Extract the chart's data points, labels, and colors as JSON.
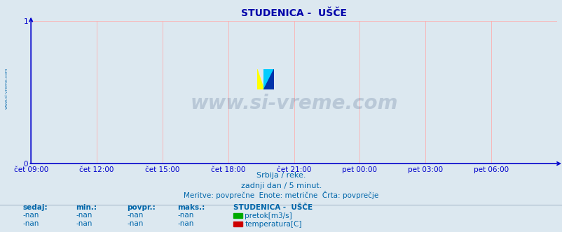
{
  "title": "STUDENICA -  UŠČE",
  "background_color": "#dce8f0",
  "plot_bg_color": "#dce8f0",
  "grid_color": "#ffaaaa",
  "axis_color": "#0000cc",
  "title_color": "#0000aa",
  "title_fontsize": 10,
  "yticks": [
    0,
    1
  ],
  "ylim": [
    0,
    1
  ],
  "xtick_labels": [
    "čet 09:00",
    "čet 12:00",
    "čet 15:00",
    "čet 18:00",
    "čet 21:00",
    "pet 00:00",
    "pet 03:00",
    "pet 06:00"
  ],
  "xtick_positions": [
    0.0,
    0.125,
    0.25,
    0.375,
    0.5,
    0.625,
    0.75,
    0.875
  ],
  "watermark": "www.si-vreme.com",
  "watermark_color": "#1a3a6a",
  "watermark_alpha": 0.18,
  "side_text": "www.si-vreme.com",
  "sub_text1": "Srbija / reke.",
  "sub_text2": "zadnji dan / 5 minut.",
  "sub_text3": "Meritve: povprečne  Enote: metrične  Črta: povprečje",
  "sub_text_color": "#0066aa",
  "legend_title": "STUDENICA -  UŠČE",
  "legend_items": [
    {
      "label": "pretok[m3/s]",
      "color": "#00aa00"
    },
    {
      "label": "temperatura[C]",
      "color": "#cc0000"
    }
  ],
  "table_headers": [
    "sedaj:",
    "min.:",
    "povpr.:",
    "maks.:"
  ],
  "table_values": [
    "-nan",
    "-nan",
    "-nan",
    "-nan"
  ],
  "table_color": "#0066aa",
  "figsize": [
    8.03,
    3.32
  ],
  "dpi": 100
}
